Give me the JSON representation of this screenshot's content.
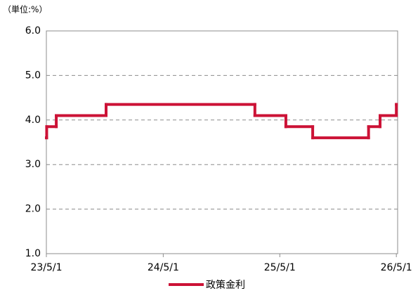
{
  "chart_data": {
    "type": "step-line",
    "unit_label": "（単位:%）",
    "series": [
      {
        "name": "政策金利",
        "color": "#cc1236",
        "x": [
          "2023-05-01",
          "2023-05-02",
          "2023-06-01",
          "2023-11-04",
          "2025-02-12",
          "2025-05-20",
          "2025-08-12",
          "2026-02-03",
          "2026-03-11",
          "2026-05-01"
        ],
        "values": [
          3.6,
          3.85,
          4.1,
          4.35,
          4.1,
          3.85,
          3.6,
          3.85,
          4.1,
          4.35
        ]
      }
    ],
    "xlim": [
      "2023-05-01",
      "2026-05-05"
    ],
    "xticks": [
      {
        "value": "2023-05-01",
        "label": "23/5/1"
      },
      {
        "value": "2024-05-01",
        "label": "24/5/1"
      },
      {
        "value": "2025-05-01",
        "label": "25/5/1"
      },
      {
        "value": "2026-05-01",
        "label": "26/5/1"
      }
    ],
    "ylim": [
      1,
      6
    ],
    "yticks": [
      {
        "value": 1,
        "label": "1.0"
      },
      {
        "value": 2,
        "label": "2.0"
      },
      {
        "value": 3,
        "label": "3.0"
      },
      {
        "value": 4,
        "label": "4.0"
      },
      {
        "value": 5,
        "label": "5.0"
      },
      {
        "value": 6,
        "label": "6.0"
      }
    ],
    "grid": true,
    "legend": "bottom"
  }
}
